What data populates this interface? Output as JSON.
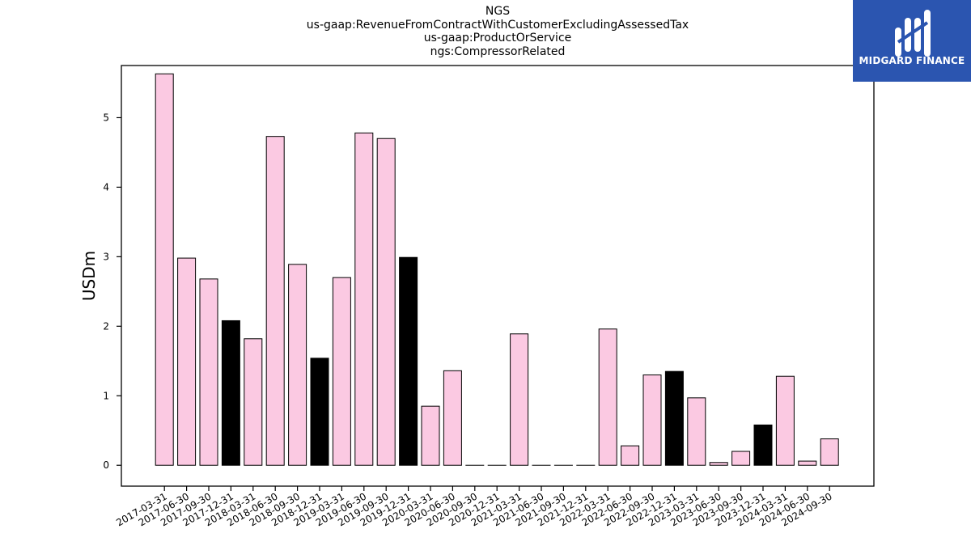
{
  "title_lines": [
    "NGS",
    "us-gaap:RevenueFromContractWithCustomerExcludingAssessedTax",
    "us-gaap:ProductOrService",
    "ngs:CompressorRelated"
  ],
  "logo": {
    "text": "MIDGARD FINANCE",
    "background": "#2b55b0"
  },
  "chart_data": {
    "type": "bar",
    "title": "NGS\nus-gaap:RevenueFromContractWithCustomerExcludingAssessedTax\nus-gaap:ProductOrService\nngs:CompressorRelated",
    "xlabel": "",
    "ylabel": "USDm",
    "ylim": [
      -0.3,
      5.75
    ],
    "yticks": [
      0,
      1,
      2,
      3,
      4,
      5
    ],
    "grid": false,
    "categories": [
      "2017-03-31",
      "2017-06-30",
      "2017-09-30",
      "2017-12-31",
      "2018-03-31",
      "2018-06-30",
      "2018-09-30",
      "2018-12-31",
      "2019-03-31",
      "2019-06-30",
      "2019-09-30",
      "2019-12-31",
      "2020-03-31",
      "2020-06-30",
      "2020-09-30",
      "2020-12-31",
      "2021-03-31",
      "2021-06-30",
      "2021-09-30",
      "2021-12-31",
      "2022-03-31",
      "2022-06-30",
      "2022-09-30",
      "2022-12-31",
      "2023-03-31",
      "2023-06-30",
      "2023-09-30",
      "2023-12-31",
      "2024-03-31",
      "2024-06-30",
      "2024-09-30"
    ],
    "values": [
      5.63,
      2.98,
      2.68,
      2.08,
      1.82,
      4.73,
      2.89,
      1.54,
      2.7,
      4.78,
      4.7,
      2.99,
      0.85,
      1.36,
      0.0,
      0.0,
      1.89,
      0.0,
      0.0,
      0.0,
      1.96,
      0.28,
      1.3,
      1.35,
      0.97,
      0.04,
      0.2,
      0.58,
      1.28,
      0.06,
      0.38
    ],
    "fill_colors": [
      "#fbc9e2",
      "#fbc9e2",
      "#fbc9e2",
      "#000000",
      "#fbc9e2",
      "#fbc9e2",
      "#fbc9e2",
      "#000000",
      "#fbc9e2",
      "#fbc9e2",
      "#fbc9e2",
      "#000000",
      "#fbc9e2",
      "#fbc9e2",
      "#fbc9e2",
      "#fbc9e2",
      "#fbc9e2",
      "#fbc9e2",
      "#fbc9e2",
      "#fbc9e2",
      "#fbc9e2",
      "#fbc9e2",
      "#fbc9e2",
      "#000000",
      "#fbc9e2",
      "#fbc9e2",
      "#fbc9e2",
      "#000000",
      "#fbc9e2",
      "#fbc9e2",
      "#fbc9e2"
    ],
    "edge_color": "#000000"
  }
}
